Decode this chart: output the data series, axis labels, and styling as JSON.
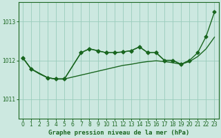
{
  "title": "Graphe pression niveau de la mer (hPa)",
  "bg_color": "#cce8e0",
  "grid_color": "#99ccbb",
  "line_color": "#1a6620",
  "xlim": [
    -0.5,
    23.5
  ],
  "ylim": [
    1010.5,
    1013.5
  ],
  "yticks": [
    1011,
    1012,
    1013
  ],
  "xticks": [
    0,
    1,
    2,
    3,
    4,
    5,
    6,
    7,
    8,
    9,
    10,
    11,
    12,
    13,
    14,
    15,
    16,
    17,
    18,
    19,
    20,
    21,
    22,
    23
  ],
  "line1_x": [
    0,
    1,
    2,
    3,
    4,
    5,
    6,
    7,
    8,
    9,
    10,
    11,
    12,
    13,
    14,
    15,
    16,
    17,
    18,
    19,
    20,
    21,
    22,
    23
  ],
  "line1_y": [
    1012.07,
    1011.78,
    1011.65,
    1011.55,
    1011.52,
    1011.52,
    1011.57,
    1011.62,
    1011.67,
    1011.72,
    1011.77,
    1011.82,
    1011.87,
    1011.9,
    1011.94,
    1011.97,
    1011.99,
    1011.97,
    1011.94,
    1011.9,
    1011.97,
    1012.1,
    1012.3,
    1012.6
  ],
  "line2_x": [
    0,
    1,
    3,
    4,
    5,
    7,
    8,
    9,
    10,
    11,
    12,
    13,
    14,
    15,
    16,
    17,
    18,
    19,
    20
  ],
  "line2_y": [
    1012.07,
    1011.78,
    1011.55,
    1011.52,
    1011.52,
    1012.2,
    1012.3,
    1012.25,
    1012.2,
    1012.2,
    1012.22,
    1012.25,
    1012.35,
    1012.2,
    1012.2,
    1012.0,
    1012.0,
    1011.9,
    1012.0
  ],
  "line3_x": [
    0,
    1,
    3,
    4,
    5,
    7,
    8,
    9,
    10,
    11,
    12,
    13,
    14,
    15,
    16,
    17,
    18,
    19,
    20,
    21,
    22,
    23
  ],
  "line3_y": [
    1012.07,
    1011.78,
    1011.55,
    1011.52,
    1011.52,
    1012.2,
    1012.3,
    1012.25,
    1012.2,
    1012.2,
    1012.22,
    1012.25,
    1012.35,
    1012.2,
    1012.2,
    1012.0,
    1012.0,
    1011.9,
    1012.0,
    1012.2,
    1012.62,
    1013.25
  ],
  "marker_x": [
    0,
    1,
    3,
    4,
    5,
    7,
    8,
    9,
    10,
    11,
    12,
    13,
    14,
    15,
    16,
    17,
    18,
    19,
    20,
    21,
    22,
    23
  ],
  "marker_y": [
    1012.07,
    1011.78,
    1011.55,
    1011.52,
    1011.52,
    1012.2,
    1012.3,
    1012.25,
    1012.2,
    1012.2,
    1012.22,
    1012.25,
    1012.35,
    1012.2,
    1012.2,
    1012.0,
    1012.0,
    1011.9,
    1012.0,
    1012.2,
    1012.62,
    1013.25
  ]
}
